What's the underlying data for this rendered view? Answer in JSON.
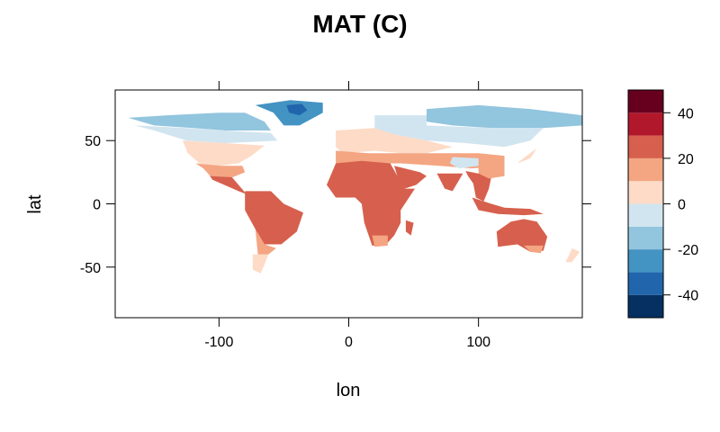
{
  "chart_data": {
    "type": "heatmap",
    "title": "MAT (C)",
    "xlabel": "lon",
    "ylabel": "lat",
    "xlim": [
      -180,
      180
    ],
    "ylim": [
      -90,
      90
    ],
    "x_ticks": [
      -100,
      0,
      100
    ],
    "y_ticks": [
      -50,
      0,
      50
    ],
    "x_tick_labels": [
      "-100",
      "0",
      "100"
    ],
    "y_tick_labels": [
      "-50",
      "0",
      "50"
    ],
    "colorbar": {
      "range": [
        -50,
        50
      ],
      "breaks": [
        -50,
        -40,
        -30,
        -20,
        -10,
        0,
        10,
        20,
        30,
        40,
        50
      ],
      "colors": [
        "#053061",
        "#2166ac",
        "#4393c3",
        "#92c5de",
        "#d1e5f0",
        "#fddbc7",
        "#f4a582",
        "#d6604d",
        "#b2182b",
        "#67001f"
      ],
      "tick_values": [
        -40,
        -20,
        0,
        20,
        40
      ],
      "tick_labels": [
        "-40",
        "-20",
        "0",
        "20",
        "40"
      ],
      "position": "right"
    },
    "land_regions": [
      {
        "name": "north-america-arctic",
        "color": "#92c5de",
        "points": [
          [
            -170,
            68
          ],
          [
            -140,
            70
          ],
          [
            -100,
            72
          ],
          [
            -80,
            72
          ],
          [
            -65,
            65
          ],
          [
            -60,
            58
          ],
          [
            -95,
            58
          ],
          [
            -120,
            60
          ],
          [
            -150,
            62
          ]
        ]
      },
      {
        "name": "north-america-boreal",
        "color": "#d1e5f0",
        "points": [
          [
            -165,
            62
          ],
          [
            -125,
            60
          ],
          [
            -95,
            58
          ],
          [
            -60,
            56
          ],
          [
            -55,
            50
          ],
          [
            -95,
            48
          ],
          [
            -125,
            50
          ],
          [
            -150,
            58
          ]
        ]
      },
      {
        "name": "north-america-temperate",
        "color": "#fddbc7",
        "points": [
          [
            -128,
            50
          ],
          [
            -95,
            48
          ],
          [
            -65,
            46
          ],
          [
            -75,
            38
          ],
          [
            -85,
            32
          ],
          [
            -100,
            30
          ],
          [
            -115,
            32
          ],
          [
            -124,
            40
          ]
        ]
      },
      {
        "name": "north-america-south",
        "color": "#f4a582",
        "points": [
          [
            -118,
            32
          ],
          [
            -98,
            30
          ],
          [
            -82,
            30
          ],
          [
            -80,
            25
          ],
          [
            -92,
            20
          ],
          [
            -105,
            20
          ],
          [
            -112,
            28
          ]
        ]
      },
      {
        "name": "central-america",
        "color": "#d6604d",
        "points": [
          [
            -107,
            22
          ],
          [
            -90,
            21
          ],
          [
            -85,
            15
          ],
          [
            -80,
            9
          ],
          [
            -77,
            7
          ],
          [
            -85,
            10
          ],
          [
            -96,
            15
          ],
          [
            -105,
            19
          ]
        ]
      },
      {
        "name": "greenland-coast",
        "color": "#4393c3",
        "points": [
          [
            -72,
            78
          ],
          [
            -45,
            82
          ],
          [
            -20,
            80
          ],
          [
            -20,
            72
          ],
          [
            -38,
            62
          ],
          [
            -50,
            62
          ],
          [
            -58,
            72
          ]
        ]
      },
      {
        "name": "greenland-ice",
        "color": "#2166ac",
        "points": [
          [
            -48,
            78
          ],
          [
            -36,
            79
          ],
          [
            -32,
            74
          ],
          [
            -38,
            70
          ],
          [
            -46,
            72
          ]
        ]
      },
      {
        "name": "south-america-north",
        "color": "#d6604d",
        "points": [
          [
            -80,
            10
          ],
          [
            -60,
            10
          ],
          [
            -50,
            0
          ],
          [
            -35,
            -7
          ],
          [
            -40,
            -22
          ],
          [
            -52,
            -32
          ],
          [
            -65,
            -32
          ],
          [
            -72,
            -20
          ],
          [
            -80,
            -5
          ]
        ]
      },
      {
        "name": "south-america-south",
        "color": "#f4a582",
        "points": [
          [
            -72,
            -20
          ],
          [
            -65,
            -32
          ],
          [
            -56,
            -35
          ],
          [
            -62,
            -40
          ],
          [
            -70,
            -40
          ]
        ]
      },
      {
        "name": "patagonia",
        "color": "#fddbc7",
        "points": [
          [
            -74,
            -40
          ],
          [
            -62,
            -40
          ],
          [
            -65,
            -48
          ],
          [
            -68,
            -55
          ],
          [
            -74,
            -52
          ]
        ]
      },
      {
        "name": "eurasia-arctic",
        "color": "#92c5de",
        "points": [
          [
            60,
            75
          ],
          [
            100,
            78
          ],
          [
            140,
            75
          ],
          [
            180,
            70
          ],
          [
            180,
            62
          ],
          [
            150,
            60
          ],
          [
            110,
            60
          ],
          [
            80,
            62
          ],
          [
            60,
            65
          ]
        ]
      },
      {
        "name": "eurasia-boreal",
        "color": "#d1e5f0",
        "points": [
          [
            20,
            70
          ],
          [
            60,
            70
          ],
          [
            60,
            62
          ],
          [
            110,
            60
          ],
          [
            150,
            60
          ],
          [
            140,
            50
          ],
          [
            120,
            45
          ],
          [
            90,
            48
          ],
          [
            60,
            50
          ],
          [
            35,
            55
          ],
          [
            20,
            58
          ]
        ]
      },
      {
        "name": "europe-temperate",
        "color": "#fddbc7",
        "points": [
          [
            -10,
            58
          ],
          [
            20,
            60
          ],
          [
            35,
            55
          ],
          [
            60,
            50
          ],
          [
            80,
            45
          ],
          [
            60,
            40
          ],
          [
            40,
            40
          ],
          [
            20,
            42
          ],
          [
            -5,
            40
          ],
          [
            -10,
            45
          ]
        ]
      },
      {
        "name": "mediterranean-central-asia",
        "color": "#f4a582",
        "points": [
          [
            -10,
            42
          ],
          [
            15,
            40
          ],
          [
            40,
            40
          ],
          [
            60,
            40
          ],
          [
            100,
            40
          ],
          [
            120,
            38
          ],
          [
            120,
            30
          ],
          [
            95,
            28
          ],
          [
            70,
            30
          ],
          [
            40,
            32
          ],
          [
            20,
            32
          ],
          [
            -10,
            32
          ]
        ]
      },
      {
        "name": "tibet",
        "color": "#d1e5f0",
        "points": [
          [
            80,
            37
          ],
          [
            100,
            36
          ],
          [
            100,
            30
          ],
          [
            85,
            28
          ],
          [
            78,
            32
          ]
        ]
      },
      {
        "name": "africa",
        "color": "#d6604d",
        "points": [
          [
            -17,
            15
          ],
          [
            -10,
            32
          ],
          [
            10,
            34
          ],
          [
            32,
            32
          ],
          [
            43,
            12
          ],
          [
            51,
            12
          ],
          [
            40,
            -5
          ],
          [
            40,
            -15
          ],
          [
            35,
            -25
          ],
          [
            28,
            -33
          ],
          [
            18,
            -33
          ],
          [
            12,
            -15
          ],
          [
            10,
            0
          ],
          [
            5,
            5
          ],
          [
            -10,
            5
          ]
        ]
      },
      {
        "name": "africa-south",
        "color": "#f4a582",
        "points": [
          [
            18,
            -25
          ],
          [
            30,
            -25
          ],
          [
            30,
            -33
          ],
          [
            20,
            -34
          ]
        ]
      },
      {
        "name": "arabia",
        "color": "#d6604d",
        "points": [
          [
            35,
            30
          ],
          [
            55,
            25
          ],
          [
            60,
            22
          ],
          [
            52,
            15
          ],
          [
            43,
            12
          ],
          [
            38,
            20
          ]
        ]
      },
      {
        "name": "madagascar",
        "color": "#d6604d",
        "points": [
          [
            44,
            -13
          ],
          [
            50,
            -15
          ],
          [
            48,
            -25
          ],
          [
            44,
            -22
          ]
        ]
      },
      {
        "name": "india",
        "color": "#d6604d",
        "points": [
          [
            68,
            24
          ],
          [
            88,
            24
          ],
          [
            80,
            10
          ],
          [
            74,
            12
          ],
          [
            70,
            20
          ]
        ]
      },
      {
        "name": "southeast-asia",
        "color": "#d6604d",
        "points": [
          [
            90,
            26
          ],
          [
            110,
            22
          ],
          [
            108,
            12
          ],
          [
            104,
            2
          ],
          [
            98,
            5
          ],
          [
            96,
            16
          ],
          [
            92,
            22
          ]
        ]
      },
      {
        "name": "south-china",
        "color": "#f4a582",
        "points": [
          [
            100,
            30
          ],
          [
            120,
            30
          ],
          [
            120,
            22
          ],
          [
            108,
            20
          ],
          [
            100,
            24
          ]
        ]
      },
      {
        "name": "indonesia",
        "color": "#d6604d",
        "points": [
          [
            95,
            5
          ],
          [
            110,
            0
          ],
          [
            120,
            -3
          ],
          [
            140,
            -4
          ],
          [
            150,
            -8
          ],
          [
            135,
            -9
          ],
          [
            115,
            -8
          ],
          [
            100,
            -5
          ]
        ]
      },
      {
        "name": "japan",
        "color": "#fddbc7",
        "points": [
          [
            130,
            32
          ],
          [
            140,
            36
          ],
          [
            145,
            44
          ],
          [
            141,
            41
          ],
          [
            132,
            34
          ]
        ]
      },
      {
        "name": "australia",
        "color": "#d6604d",
        "points": [
          [
            114,
            -22
          ],
          [
            125,
            -14
          ],
          [
            135,
            -12
          ],
          [
            145,
            -14
          ],
          [
            153,
            -26
          ],
          [
            150,
            -37
          ],
          [
            140,
            -38
          ],
          [
            130,
            -32
          ],
          [
            115,
            -34
          ]
        ]
      },
      {
        "name": "australia-south",
        "color": "#f4a582",
        "points": [
          [
            135,
            -33
          ],
          [
            150,
            -33
          ],
          [
            148,
            -39
          ],
          [
            140,
            -38
          ]
        ]
      },
      {
        "name": "new-zealand",
        "color": "#fddbc7",
        "points": [
          [
            172,
            -35
          ],
          [
            178,
            -38
          ],
          [
            172,
            -46
          ],
          [
            167,
            -46
          ],
          [
            170,
            -40
          ]
        ]
      }
    ]
  }
}
